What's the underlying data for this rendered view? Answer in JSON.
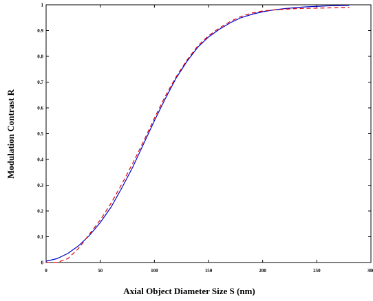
{
  "chart_data": {
    "type": "line",
    "xlabel": "Axial Object Diameter Size S (nm)",
    "ylabel": "Modulation Contrast R",
    "x": [
      0,
      10,
      20,
      30,
      40,
      50,
      60,
      70,
      80,
      90,
      100,
      110,
      120,
      130,
      140,
      150,
      160,
      170,
      180,
      190,
      200,
      210,
      220,
      230,
      240,
      250,
      260,
      270,
      280
    ],
    "series": [
      {
        "color": "#0000cc",
        "dash": false,
        "values": [
          0.005,
          0.015,
          0.035,
          0.065,
          0.105,
          0.155,
          0.215,
          0.29,
          0.37,
          0.46,
          0.55,
          0.635,
          0.715,
          0.78,
          0.835,
          0.875,
          0.905,
          0.93,
          0.95,
          0.963,
          0.973,
          0.98,
          0.985,
          0.989,
          0.992,
          0.994,
          0.996,
          0.997,
          0.998
        ]
      },
      {
        "color": "#dd0000",
        "dash": true,
        "values": [
          0,
          0,
          0.015,
          0.055,
          0.11,
          0.165,
          0.23,
          0.305,
          0.385,
          0.47,
          0.56,
          0.645,
          0.72,
          0.785,
          0.84,
          0.88,
          0.91,
          0.935,
          0.955,
          0.968,
          0.976,
          0.98,
          0.983,
          0.985,
          0.986,
          0.987,
          0.988,
          0.989,
          0.99
        ]
      }
    ],
    "xlim": [
      0,
      300
    ],
    "xticks": [
      0,
      50,
      100,
      150,
      200,
      250,
      300
    ],
    "ylim": [
      0,
      1
    ],
    "yticks": [
      0,
      0.1,
      0.2,
      0.3,
      0.4,
      0.5,
      0.6,
      0.7,
      0.8,
      0.9,
      1
    ]
  }
}
